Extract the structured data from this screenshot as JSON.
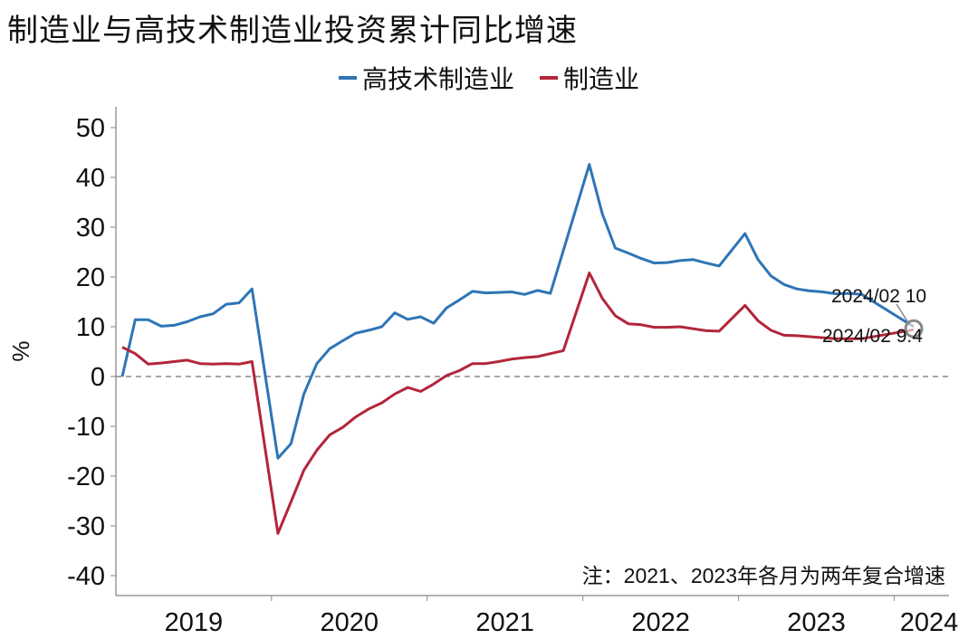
{
  "title": "制造业与高技术制造业投资累计同比增速",
  "chart_data": {
    "type": "line",
    "title": "制造业与高技术制造业投资累计同比增速",
    "ylabel": "%",
    "xlabel": "",
    "ylim": [
      -45,
      50
    ],
    "yticks": [
      50,
      40,
      30,
      20,
      10,
      0,
      -10,
      -20,
      -30,
      -40
    ],
    "year_labels": [
      "2019",
      "2020",
      "2021",
      "2022",
      "2023",
      "2024"
    ],
    "grid": false,
    "legend_position": "top-center",
    "zero_line": "dashed",
    "x": [
      "2019-01",
      "2019-02",
      "2019-03",
      "2019-04",
      "2019-05",
      "2019-06",
      "2019-07",
      "2019-08",
      "2019-09",
      "2019-10",
      "2019-11",
      "2019-12",
      "2020-01",
      "2020-02",
      "2020-03",
      "2020-04",
      "2020-05",
      "2020-06",
      "2020-07",
      "2020-08",
      "2020-09",
      "2020-10",
      "2020-11",
      "2020-12",
      "2021-01",
      "2021-02",
      "2021-03",
      "2021-04",
      "2021-05",
      "2021-06",
      "2021-07",
      "2021-08",
      "2021-09",
      "2021-10",
      "2021-11",
      "2021-12",
      "2022-01",
      "2022-02",
      "2022-03",
      "2022-04",
      "2022-05",
      "2022-06",
      "2022-07",
      "2022-08",
      "2022-09",
      "2022-10",
      "2022-11",
      "2022-12",
      "2023-01",
      "2023-02",
      "2023-03",
      "2023-04",
      "2023-05",
      "2023-06",
      "2023-07",
      "2023-08",
      "2023-09",
      "2023-10",
      "2023-11",
      "2023-12",
      "2024-01",
      "2024-02"
    ],
    "series": [
      {
        "name": "高技术制造业",
        "color": "#2e75b6",
        "values": [
          0,
          11.4,
          11.4,
          10.1,
          10.3,
          11.0,
          12.0,
          12.6,
          14.5,
          14.8,
          17.6,
          null,
          -16.4,
          -13.5,
          -3.5,
          2.6,
          5.6,
          7.2,
          8.7,
          9.3,
          10.0,
          12.8,
          11.5,
          12.0,
          10.7,
          13.8,
          15.4,
          17.1,
          16.8,
          16.9,
          17.0,
          16.5,
          17.3,
          16.7,
          null,
          null,
          42.6,
          32.7,
          25.8,
          24.8,
          23.7,
          22.8,
          22.9,
          23.3,
          23.5,
          22.8,
          22.2,
          null,
          28.7,
          23.5,
          20.2,
          18.5,
          17.6,
          17.2,
          17.0,
          16.6,
          16.7,
          16.5,
          null,
          null,
          null,
          10
        ]
      },
      {
        "name": "制造业",
        "color": "#b2263a",
        "values": [
          5.9,
          4.6,
          2.5,
          2.7,
          3.0,
          3.3,
          2.6,
          2.5,
          2.6,
          2.5,
          3.0,
          null,
          -31.5,
          -25.2,
          -18.8,
          -14.8,
          -11.7,
          -10.2,
          -8.1,
          -6.5,
          -5.3,
          -3.5,
          -2.2,
          -3.0,
          -1.5,
          0.2,
          1.2,
          2.6,
          2.6,
          3.0,
          3.5,
          3.8,
          4.0,
          4.6,
          5.2,
          null,
          20.8,
          15.7,
          12.2,
          10.6,
          10.4,
          9.9,
          9.9,
          10.0,
          9.6,
          9.2,
          9.1,
          null,
          14.3,
          11.2,
          9.3,
          8.3,
          8.2,
          8.0,
          7.8,
          7.6,
          7.6,
          7.6,
          null,
          null,
          null,
          9.4
        ]
      }
    ],
    "annotations": [
      {
        "text": "2024/02 10",
        "series": "高技术制造业",
        "x": "2024-02",
        "y": 10
      },
      {
        "text": "2024/02 9.4",
        "series": "制造业",
        "x": "2024-02",
        "y": 9.4
      }
    ],
    "note": "注：2021、2023年各月为两年复合增速"
  }
}
